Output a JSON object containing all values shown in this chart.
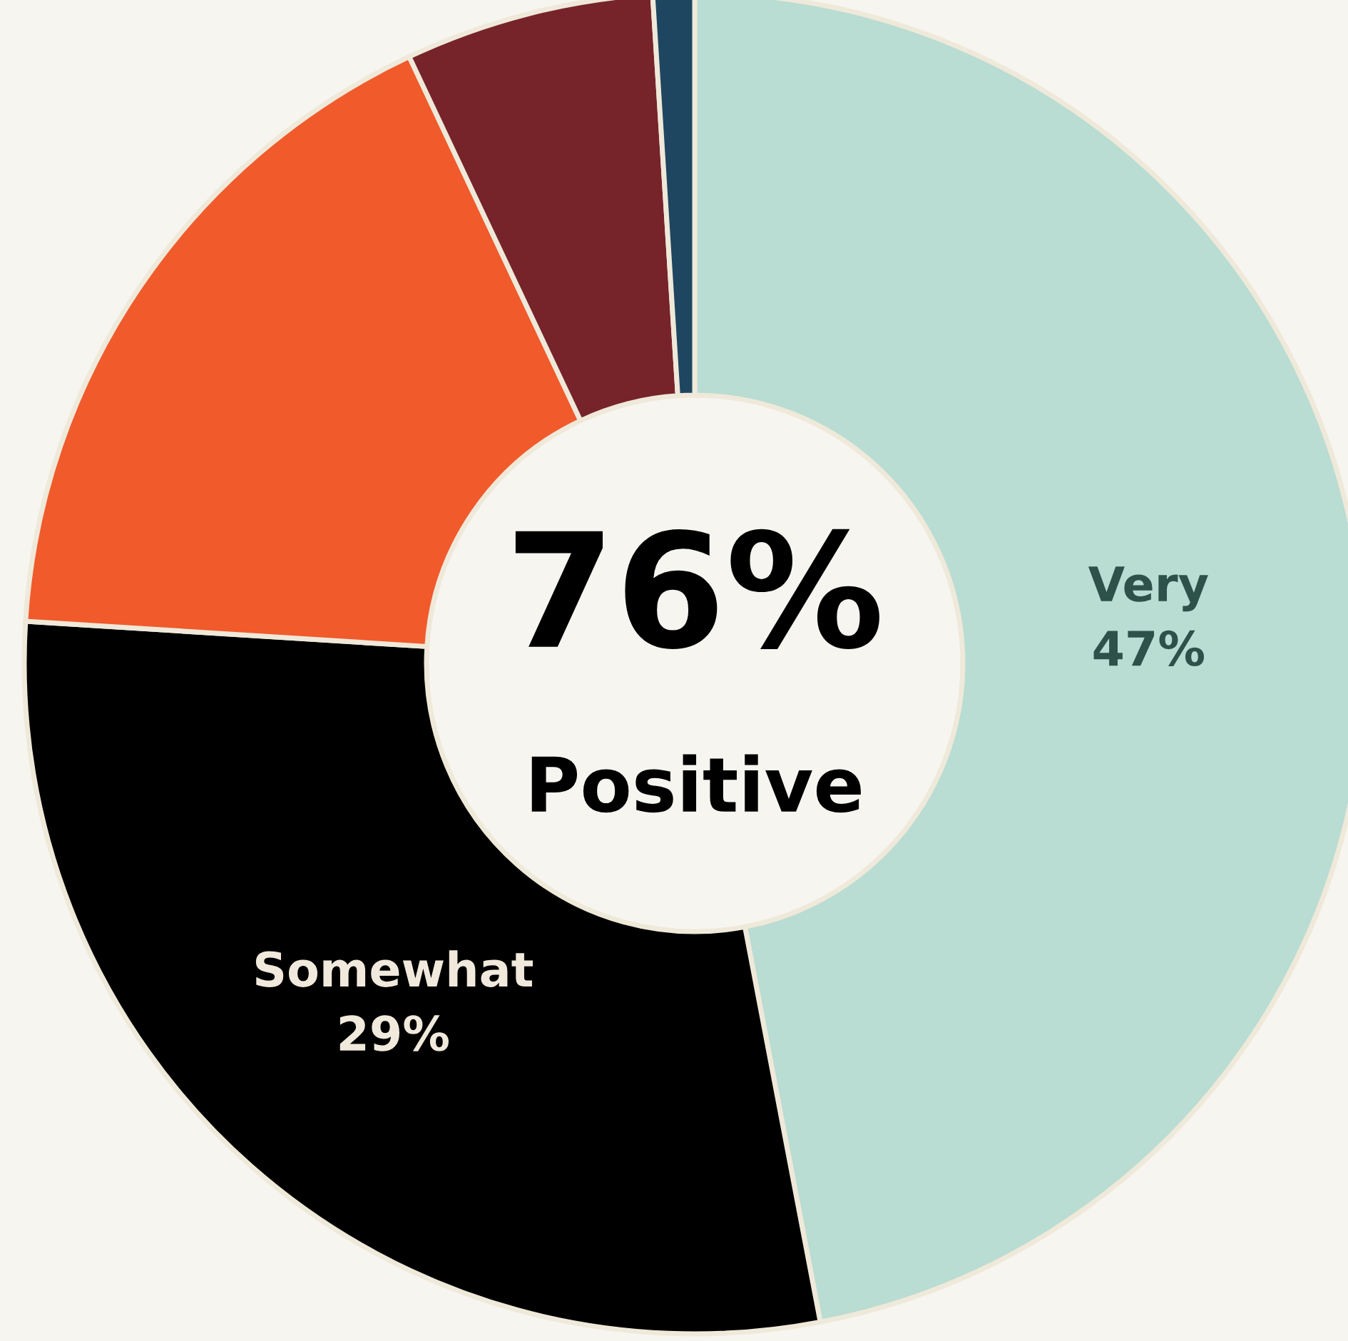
{
  "chart_data": {
    "type": "donut",
    "categories": [
      "Very",
      "Somewhat",
      null,
      null,
      null
    ],
    "values": [
      47,
      29,
      17,
      6,
      1
    ],
    "colors": [
      "#b9dcd3",
      "#000000",
      "#f15a2b",
      "#77232a",
      "#1f4660"
    ],
    "value_labels": [
      "47%",
      "29%",
      null,
      null,
      null
    ],
    "annotations": [
      "76%",
      "Positive"
    ],
    "legend": false
  }
}
